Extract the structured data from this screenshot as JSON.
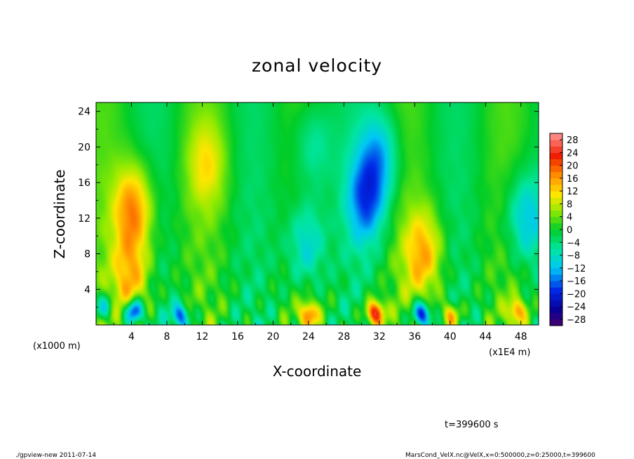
{
  "chart_data": {
    "type": "heatmap",
    "title": "zonal velocity",
    "xlabel": "X-coordinate",
    "ylabel": "Z-coordinate",
    "x_unit_left": "(x1000 m)",
    "x_unit_right": "(x1E4 m)",
    "x_ticks": [
      "4",
      "8",
      "12",
      "16",
      "20",
      "24",
      "28",
      "32",
      "36",
      "40",
      "44",
      "48"
    ],
    "y_ticks": [
      "4",
      "8",
      "12",
      "16",
      "20",
      "24"
    ],
    "xlim": [
      0,
      50
    ],
    "ylim": [
      0,
      25
    ],
    "colorbar_levels": [
      "28",
      "24",
      "20",
      "16",
      "12",
      "8",
      "4",
      "0",
      "−4",
      "−8",
      "−12",
      "−16",
      "−20",
      "−24",
      "−28"
    ],
    "colorbar_range": [
      -30,
      30
    ],
    "features": [
      {
        "x": 4.2,
        "z": 13,
        "value": 18
      },
      {
        "x": 4.0,
        "z": 5,
        "value": 14
      },
      {
        "x": 12.5,
        "z": 18,
        "value": 9
      },
      {
        "x": 24.5,
        "z": 20,
        "value": -8
      },
      {
        "x": 30.5,
        "z": 14,
        "value": -15
      },
      {
        "x": 32.0,
        "z": 19,
        "value": -12
      },
      {
        "x": 23.8,
        "z": 9,
        "value": -12
      },
      {
        "x": 37.0,
        "z": 8,
        "value": 14
      },
      {
        "x": 48.5,
        "z": 12,
        "value": -12
      },
      {
        "x": 31.5,
        "z": 1.3,
        "value": 26
      },
      {
        "x": 4.3,
        "z": 1.5,
        "value": -24
      },
      {
        "x": 36.8,
        "z": 1.2,
        "value": -24
      },
      {
        "x": 1.0,
        "z": 2.0,
        "value": -12
      },
      {
        "x": 9.5,
        "z": 1.0,
        "value": -18
      },
      {
        "x": 24.0,
        "z": 1.2,
        "value": 18
      },
      {
        "x": 40.0,
        "z": 1.0,
        "value": 16
      },
      {
        "x": 47.5,
        "z": 1.5,
        "value": 15
      }
    ]
  },
  "time_label": "t=399600 s",
  "footer_left": "./gpview-new  2011-07-14",
  "footer_right": "MarsCond_VelX.nc@VelX,x=0:500000,z=0:25000,t=399600"
}
